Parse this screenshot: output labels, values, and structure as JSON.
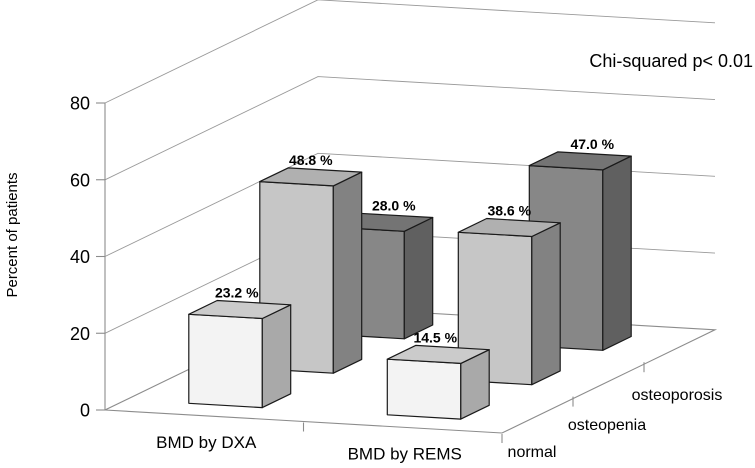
{
  "annotation": "Chi-squared p< 0.01",
  "chart_data": {
    "type": "bar",
    "subtype": "3d-column",
    "title": "",
    "ylabel": "Percent of patients",
    "xlabel": "",
    "categories": [
      "BMD by DXA",
      "BMD by REMS"
    ],
    "rows": [
      "normal",
      "osteopenia",
      "osteoporosis"
    ],
    "series": [
      {
        "name": "normal",
        "values": [
          23.2,
          14.5
        ],
        "labels": [
          "23.2 %",
          "14.5 %"
        ],
        "colors": {
          "front": "#f3f3f3",
          "top": "#cbcbcb",
          "side": "#a9a9a9"
        }
      },
      {
        "name": "osteopenia",
        "values": [
          48.8,
          38.6
        ],
        "labels": [
          "48.8 %",
          "38.6 %"
        ],
        "colors": {
          "front": "#c6c6c6",
          "top": "#b0b0b0",
          "side": "#828282"
        }
      },
      {
        "name": "osteoporosis",
        "values": [
          28.0,
          47.0
        ],
        "labels": [
          "28.0 %",
          "47.0 %"
        ],
        "colors": {
          "front": "#878787",
          "top": "#747474",
          "side": "#606060"
        }
      }
    ],
    "y_ticks": [
      0,
      20,
      40,
      60,
      80
    ],
    "ylim": [
      0,
      80
    ],
    "grid": true,
    "legend": "none",
    "grid_color": "#9a9a9a",
    "axis_color": "#8c8c8c",
    "bar_outline_color": "#1a1a1a"
  }
}
